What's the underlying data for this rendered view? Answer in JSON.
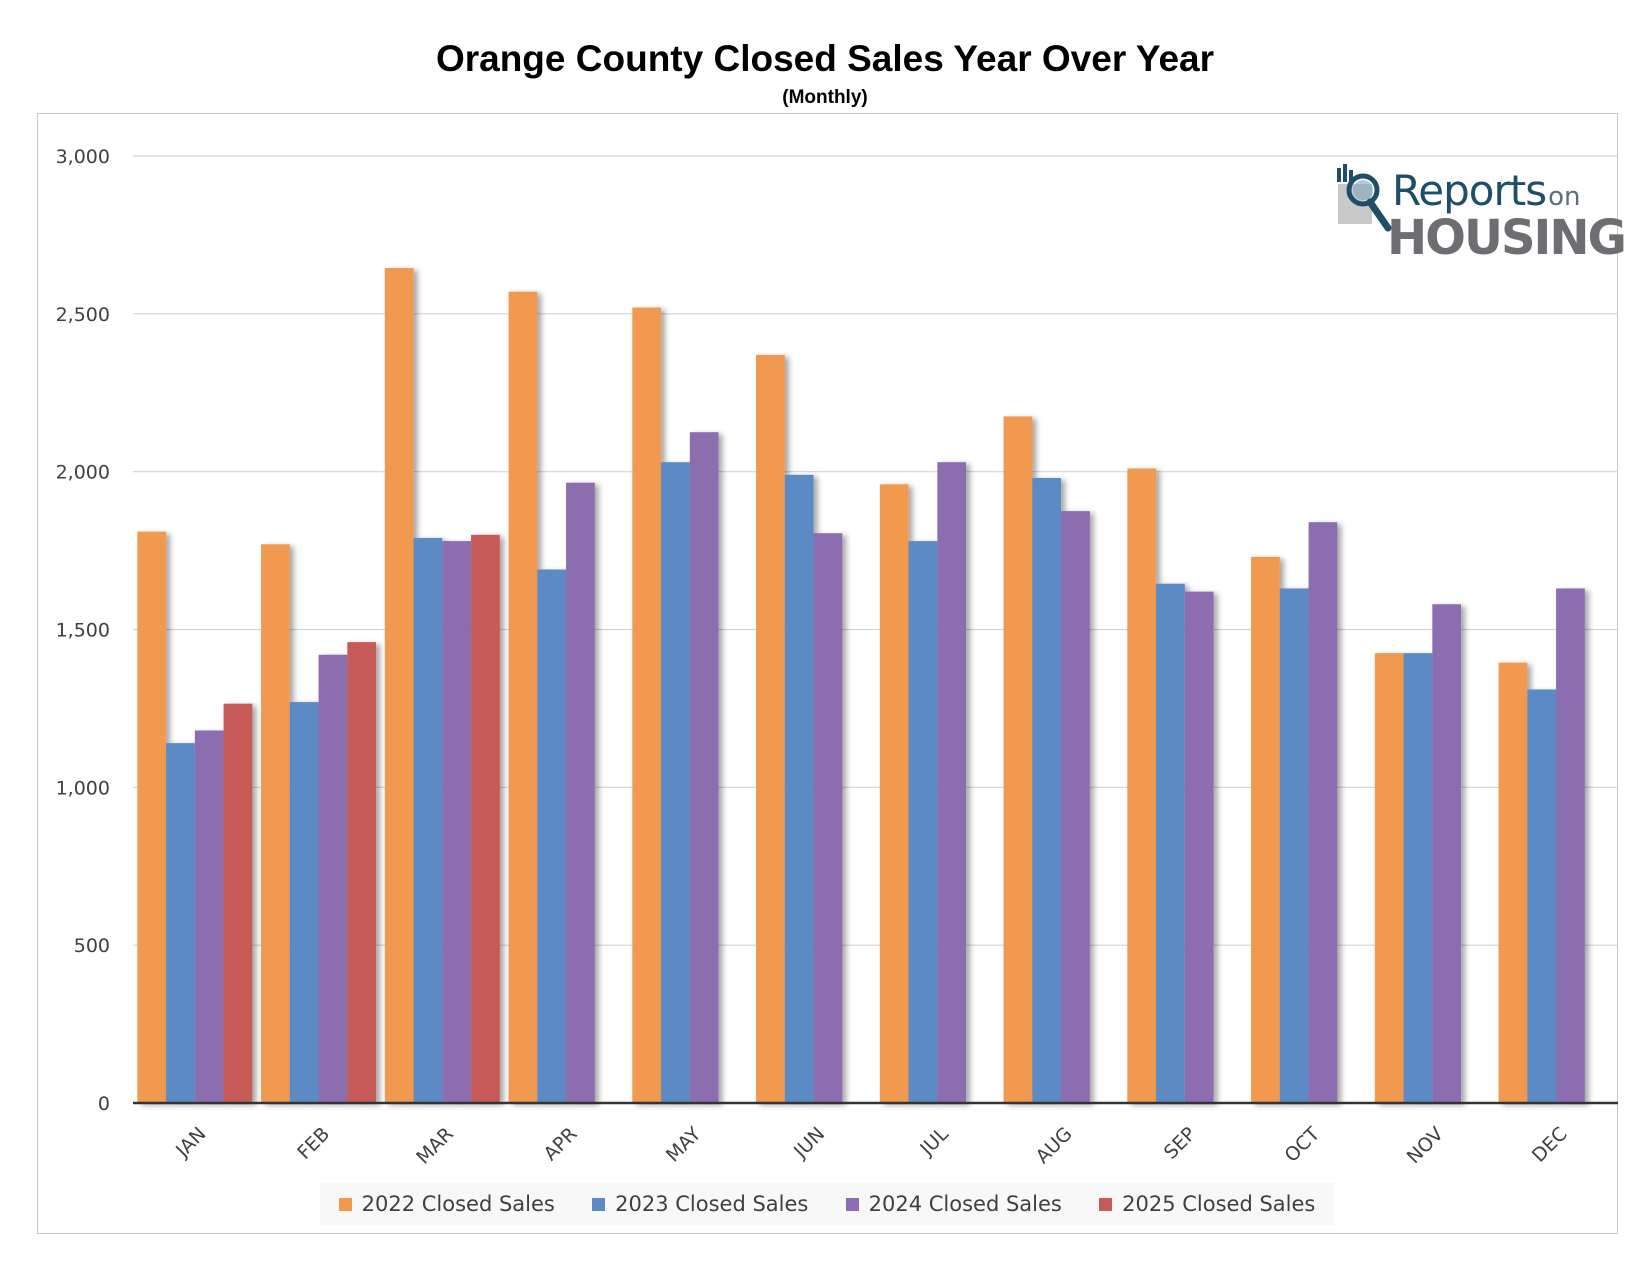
{
  "chart_data": {
    "type": "bar",
    "title": "Orange County Closed Sales Year Over Year",
    "subtitle": "(Monthly)",
    "categories": [
      "JAN",
      "FEB",
      "MAR",
      "APR",
      "MAY",
      "JUN",
      "JUL",
      "AUG",
      "SEP",
      "OCT",
      "NOV",
      "DEC"
    ],
    "series": [
      {
        "name": "2022 Closed Sales",
        "color": "#f0994f",
        "values": [
          1810,
          1770,
          2645,
          2570,
          2520,
          2370,
          1960,
          2175,
          2010,
          1730,
          1425,
          1395
        ]
      },
      {
        "name": "2023 Closed Sales",
        "color": "#5b8ac4",
        "values": [
          1140,
          1270,
          1790,
          1690,
          2030,
          1990,
          1780,
          1980,
          1645,
          1630,
          1425,
          1310
        ]
      },
      {
        "name": "2024 Closed Sales",
        "color": "#8c6daf",
        "values": [
          1180,
          1420,
          1780,
          1965,
          2125,
          1805,
          2030,
          1875,
          1620,
          1840,
          1580,
          1630
        ]
      },
      {
        "name": "2025 Closed Sales",
        "color": "#c55a57",
        "values": [
          1265,
          1460,
          1800,
          null,
          null,
          null,
          null,
          null,
          null,
          null,
          null,
          null
        ]
      }
    ],
    "yticks": [
      "0",
      "500",
      "1,000",
      "1,500",
      "2,000",
      "2,500",
      "3,000"
    ],
    "ylim": [
      0,
      3000
    ],
    "grid": true,
    "legend_position": "bottom"
  },
  "logo": {
    "line1": "Reports",
    "line1_small": "on",
    "line2": "HOUSING"
  }
}
